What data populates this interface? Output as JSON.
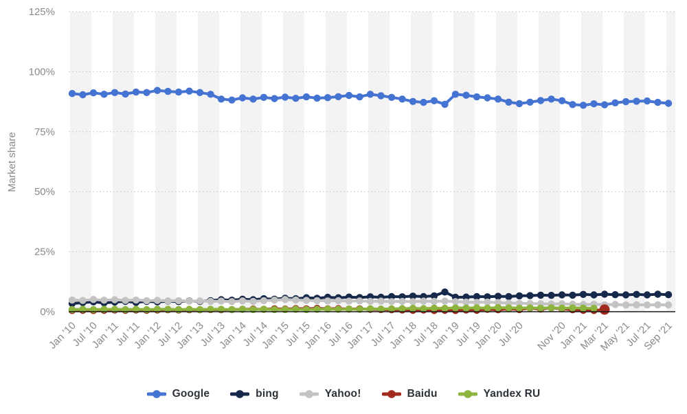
{
  "chart": {
    "ylabel": "Market share"
  },
  "chart_data": {
    "type": "line",
    "ylabel": "Market share",
    "ylim": [
      0,
      125
    ],
    "grid": "horizontal-dotted",
    "plot_background": "alternating vertical half-year stripes",
    "legend_position": "bottom-center",
    "yticks": [
      0,
      25,
      50,
      75,
      100,
      125
    ],
    "ytick_labels": [
      "0%",
      "25%",
      "50%",
      "75%",
      "100%",
      "125%"
    ],
    "x": [
      "Jan '10",
      "Apr '10",
      "Jul '10",
      "Oct '10",
      "Jan '11",
      "Apr '11",
      "Jul '11",
      "Oct '11",
      "Jan '12",
      "Apr '12",
      "Jul '12",
      "Oct '12",
      "Jan '13",
      "Apr '13",
      "Jul '13",
      "Oct '13",
      "Jan '14",
      "Apr '14",
      "Jul '14",
      "Oct '14",
      "Jan '15",
      "Apr '15",
      "Jul '15",
      "Oct '15",
      "Jan '16",
      "Apr '16",
      "Jul '16",
      "Oct '16",
      "Jan '17",
      "Apr '17",
      "Jul '17",
      "Oct '17",
      "Jan '18",
      "Apr '18",
      "Jul '18",
      "Oct '18",
      "Jan '19",
      "Apr '19",
      "Jul '19",
      "Oct '19",
      "Jan '20",
      "Apr '20",
      "Jul '20",
      "Aug '20",
      "Sep '20",
      "Oct '20",
      "Nov '20",
      "Dec '20",
      "Jan '21",
      "Feb '21",
      "Mar '21",
      "Apr '21",
      "May '21",
      "Jun '21",
      "Jul '21",
      "Aug '21",
      "Sep '21"
    ],
    "x_ticks": [
      {
        "i": 0,
        "label": "Jan '10"
      },
      {
        "i": 2,
        "label": "Jul '10"
      },
      {
        "i": 4,
        "label": "Jan '11"
      },
      {
        "i": 6,
        "label": "Jul '11"
      },
      {
        "i": 8,
        "label": "Jan '12"
      },
      {
        "i": 10,
        "label": "Jul '12"
      },
      {
        "i": 12,
        "label": "Jan '13"
      },
      {
        "i": 14,
        "label": "Jul '13"
      },
      {
        "i": 16,
        "label": "Jan '14"
      },
      {
        "i": 18,
        "label": "Jul '14"
      },
      {
        "i": 20,
        "label": "Jan '15"
      },
      {
        "i": 22,
        "label": "Jul '15"
      },
      {
        "i": 24,
        "label": "Jan '16"
      },
      {
        "i": 26,
        "label": "Jul '16"
      },
      {
        "i": 28,
        "label": "Jan '17"
      },
      {
        "i": 30,
        "label": "Jul '17"
      },
      {
        "i": 32,
        "label": "Jan '18"
      },
      {
        "i": 34,
        "label": "Jul '18"
      },
      {
        "i": 36,
        "label": "Jan '19"
      },
      {
        "i": 38,
        "label": "Jul '19"
      },
      {
        "i": 40,
        "label": "Jan '20"
      },
      {
        "i": 42,
        "label": "Jul '20"
      },
      {
        "i": 46,
        "label": "Nov '20"
      },
      {
        "i": 48,
        "label": "Jan '21"
      },
      {
        "i": 50,
        "label": "Mar '21"
      },
      {
        "i": 52,
        "label": "May '21"
      },
      {
        "i": 54,
        "label": "Jul '21"
      },
      {
        "i": 56,
        "label": "Sep '21"
      }
    ],
    "series": [
      {
        "name": "Google",
        "color": "#4473d2",
        "values": [
          90.9,
          90.4,
          91.2,
          90.6,
          91.3,
          90.7,
          91.5,
          91.3,
          92.2,
          91.8,
          91.5,
          91.9,
          91.3,
          90.6,
          88.6,
          88.2,
          89.1,
          88.6,
          89.3,
          88.8,
          89.4,
          88.9,
          89.5,
          89.0,
          89.2,
          89.6,
          90.1,
          89.5,
          90.6,
          90.0,
          89.3,
          88.6,
          87.6,
          87.2,
          87.9,
          86.4,
          90.6,
          90.2,
          89.5,
          89.1,
          88.6,
          87.3,
          86.7,
          87.3,
          88.0,
          88.6,
          87.9,
          86.3,
          86.0,
          86.6,
          86.2,
          87.0,
          87.5,
          87.7,
          87.8,
          87.2,
          86.8
        ]
      },
      {
        "name": "bing",
        "color": "#16294b",
        "values": [
          3.4,
          3.8,
          4.1,
          3.7,
          4.0,
          4.3,
          3.9,
          4.3,
          4.1,
          4.4,
          4.2,
          4.5,
          4.3,
          4.6,
          5.0,
          4.8,
          5.2,
          5.0,
          5.4,
          5.2,
          5.6,
          5.4,
          5.8,
          5.6,
          6.0,
          5.8,
          6.1,
          5.9,
          6.2,
          6.0,
          6.3,
          6.2,
          6.5,
          6.3,
          6.6,
          8.2,
          6.0,
          6.1,
          6.3,
          6.2,
          6.4,
          6.3,
          6.6,
          6.7,
          6.9,
          6.8,
          7.0,
          6.9,
          7.2,
          7.0,
          7.3,
          7.1,
          7.0,
          7.2,
          7.0,
          7.3,
          7.1
        ]
      },
      {
        "name": "Yahoo!",
        "color": "#c3c3c3",
        "values": [
          4.9,
          4.7,
          5.1,
          4.8,
          5.0,
          4.7,
          4.9,
          4.6,
          4.7,
          4.5,
          4.6,
          4.4,
          4.5,
          4.3,
          4.4,
          4.2,
          4.5,
          4.3,
          4.6,
          4.8,
          5.1,
          4.9,
          4.7,
          4.6,
          4.5,
          4.6,
          4.4,
          4.5,
          4.3,
          4.4,
          4.2,
          4.3,
          4.2,
          4.4,
          4.3,
          4.4,
          4.2,
          4.0,
          3.9,
          4.0,
          3.8,
          3.6,
          3.5,
          3.4,
          3.3,
          3.2,
          3.3,
          3.1,
          3.0,
          3.1,
          2.9,
          3.0,
          2.8,
          2.9,
          2.8,
          2.9,
          2.8
        ]
      },
      {
        "name": "Baidu",
        "color": "#a02b1e",
        "end_marker": "large",
        "values": [
          0.5,
          0.6,
          0.5,
          0.6,
          0.7,
          0.6,
          0.7,
          0.6,
          0.7,
          0.8,
          0.7,
          0.8,
          0.8,
          0.9,
          0.8,
          0.9,
          1.0,
          1.1,
          1.0,
          1.2,
          1.1,
          1.3,
          1.2,
          1.4,
          1.2,
          1.3,
          1.1,
          1.2,
          1.0,
          0.9,
          0.8,
          0.7,
          0.6,
          0.7,
          0.5,
          0.6,
          0.5,
          0.7,
          0.6,
          1.0,
          0.8,
          1.2,
          0.9,
          1.5,
          1.1,
          1.6,
          1.2,
          0.8,
          0.6,
          0.5,
          0.9,
          null,
          null,
          null,
          null,
          null,
          null
        ]
      },
      {
        "name": "Yandex RU",
        "color": "#8cb43e",
        "values": [
          0.9,
          1.0,
          0.9,
          1.0,
          1.0,
          0.9,
          1.0,
          0.9,
          1.0,
          1.0,
          0.9,
          1.0,
          0.9,
          1.0,
          1.0,
          0.9,
          1.0,
          0.9,
          1.0,
          0.9,
          0.9,
          1.0,
          0.9,
          1.0,
          1.1,
          1.0,
          1.1,
          1.0,
          1.2,
          1.1,
          1.2,
          1.3,
          1.4,
          1.3,
          1.5,
          1.4,
          1.6,
          1.5,
          1.6,
          1.5,
          1.7,
          1.6,
          1.5,
          1.6,
          1.5,
          1.6,
          1.5,
          1.6,
          1.5,
          1.4,
          null,
          null,
          null,
          null,
          null,
          null,
          null
        ]
      }
    ],
    "style": {
      "stripe_color": "#f3f3f3",
      "grid_color": "#cccccc",
      "zero_line_color": "#1a1a1a",
      "axis_text_color": "#8a8a8a",
      "legend_text_color": "#2b3137"
    }
  }
}
